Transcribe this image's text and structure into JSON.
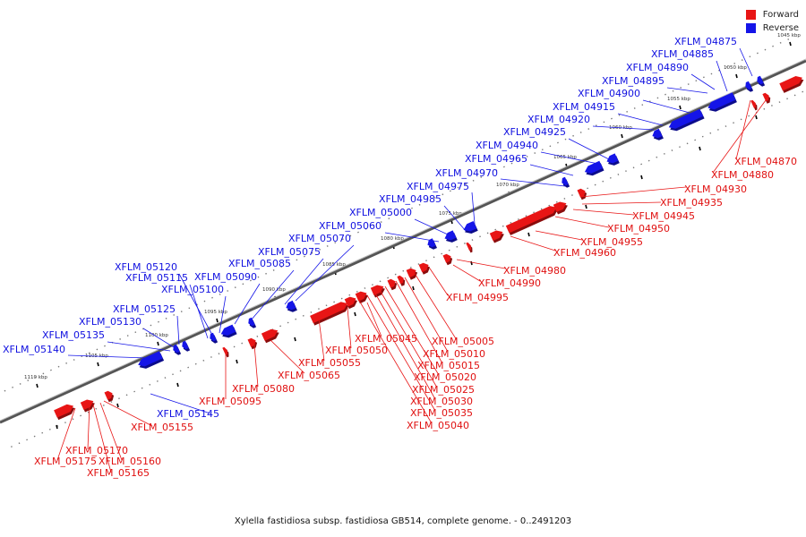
{
  "legend": {
    "forward_label": "Forward",
    "reverse_label": "Reverse",
    "forward_color": "#e81515",
    "reverse_color": "#1515e8"
  },
  "caption": "Xylella fastidiosa subsp. fastidiosa GB514, complete genome. - 0..2491203",
  "ticks": [
    "1045 kbp",
    "1050 kbp",
    "1055 kbp",
    "1060 kbp",
    "1065 kbp",
    "1070 kbp",
    "1075 kbp",
    "1080 kbp",
    "1085 kbp",
    "1090 kbp",
    "1095 kbp",
    "1100 kbp",
    "1105 kbp",
    "1110 kbp"
  ],
  "reverse_genes": [
    "XFLM_04875",
    "XFLM_04885",
    "XFLM_04890",
    "XFLM_04895",
    "XFLM_04900",
    "XFLM_04915",
    "XFLM_04920",
    "XFLM_04925",
    "XFLM_04940",
    "XFLM_04965",
    "XFLM_04970",
    "XFLM_04975",
    "XFLM_04985",
    "XFLM_05000",
    "XFLM_05060",
    "XFLM_05070",
    "XFLM_05075",
    "XFLM_05085",
    "XFLM_05090",
    "XFLM_05120",
    "XFLM_05115",
    "XFLM_05100",
    "XFLM_05125",
    "XFLM_05130",
    "XFLM_05135",
    "XFLM_05140",
    "XFLM_05145"
  ],
  "forward_genes": [
    "XFLM_04870",
    "XFLM_04880",
    "XFLM_04930",
    "XFLM_04935",
    "XFLM_04945",
    "XFLM_04950",
    "XFLM_04955",
    "XFLM_04960",
    "XFLM_04980",
    "XFLM_04990",
    "XFLM_04995",
    "XFLM_05005",
    "XFLM_05010",
    "XFLM_05015",
    "XFLM_05020",
    "XFLM_05025",
    "XFLM_05030",
    "XFLM_05035",
    "XFLM_05040",
    "XFLM_05045",
    "XFLM_05050",
    "XFLM_05055",
    "XFLM_05065",
    "XFLM_05080",
    "XFLM_05095",
    "XFLM_05155",
    "XFLM_05170",
    "XFLM_05175",
    "XFLM_05160",
    "XFLM_05165"
  ]
}
